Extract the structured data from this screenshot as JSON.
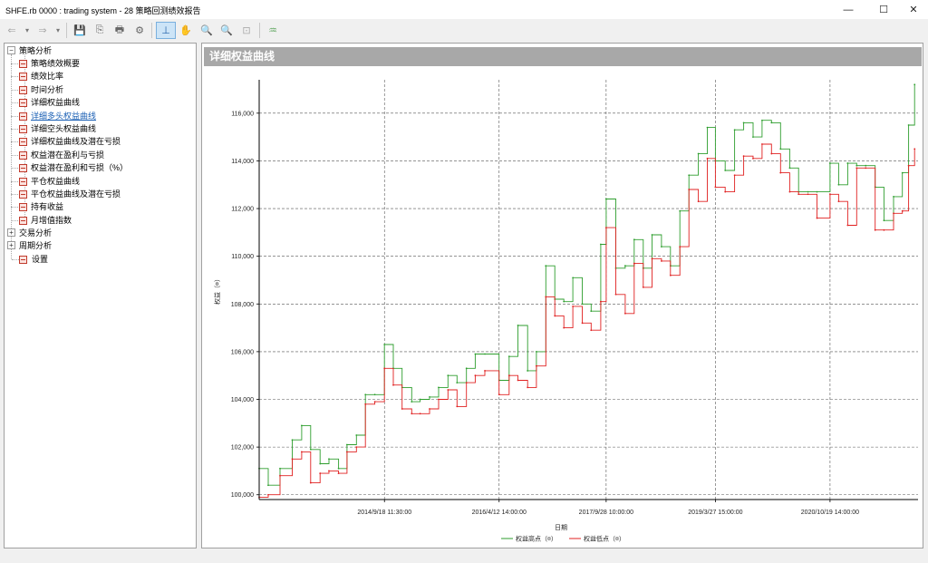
{
  "window": {
    "title": "SHFE.rb 0000 : trading system - 28 策略回测绩效报告",
    "minimize": "—",
    "maximize": "☐",
    "close": "✕"
  },
  "toolbar": {
    "back": "⇐",
    "back_dropdown": "▾",
    "forward": "⇒",
    "forward_dropdown": "▾",
    "save": "💾",
    "export": "⎘",
    "print": "🖶",
    "settings": "⚙",
    "cursor": "⊥",
    "hand": "✋",
    "zoom_in": "🔍",
    "zoom_out": "🔍",
    "zoom_fit": "⊡",
    "chart_style": "♒"
  },
  "tree": {
    "root1": {
      "label": "策略分析",
      "toggle": "−"
    },
    "items": [
      {
        "label": "策略绩效概要"
      },
      {
        "label": "绩效比率"
      },
      {
        "label": "时间分析"
      },
      {
        "label": "详细权益曲线"
      },
      {
        "label": "详细多头权益曲线",
        "selected": true
      },
      {
        "label": "详细空头权益曲线"
      },
      {
        "label": "详细权益曲线及潜在亏损"
      },
      {
        "label": "权益潜在盈利与亏损"
      },
      {
        "label": "权益潜在盈利和亏损（%）"
      },
      {
        "label": "平仓权益曲线"
      },
      {
        "label": "平仓权益曲线及潜在亏损"
      },
      {
        "label": "持有收益"
      },
      {
        "label": "月增值指数"
      }
    ],
    "root2": {
      "label": "交易分析",
      "toggle": "+"
    },
    "root3": {
      "label": "周期分析",
      "toggle": "+"
    },
    "root4": {
      "label": "设置"
    }
  },
  "panel": {
    "header": "详细权益曲线"
  },
  "colors": {
    "high": "#2e9e2e",
    "low": "#e02020",
    "grid": "#555555"
  },
  "chart_data": {
    "type": "line",
    "xlabel": "日期",
    "ylabel": "权益（¤）",
    "x_ticks": [
      "2014/9/18 11:30:00",
      "2016/4/12 14:00:00",
      "2017/9/28 10:00:00",
      "2019/3/27 15:00:00",
      "2020/10/19 14:00:00"
    ],
    "y_ticks": [
      "100,000",
      "102,000",
      "104,000",
      "106,000",
      "108,000",
      "110,000",
      "112,000",
      "114,000",
      "116,000"
    ],
    "ylim": [
      99800,
      117400
    ],
    "xlim": [
      "2013/1/1",
      "2022/1/1"
    ],
    "grid": true,
    "legend_position": "bottom",
    "series": [
      {
        "name": "权益高点（¤）",
        "color": "#2e9e2e",
        "x": [
          "2013/1/1",
          "2013/2/15",
          "2013/4/15",
          "2013/6/15",
          "2013/8/1",
          "2013/9/15",
          "2013/11/1",
          "2013/12/15",
          "2014/2/1",
          "2014/3/15",
          "2014/5/1",
          "2014/6/15",
          "2014/8/1",
          "2014/9/18",
          "2014/11/1",
          "2014/12/15",
          "2015/2/1",
          "2015/3/15",
          "2015/5/1",
          "2015/6/15",
          "2015/8/1",
          "2015/9/15",
          "2015/11/1",
          "2015/12/15",
          "2016/2/1",
          "2016/4/12",
          "2016/6/1",
          "2016/7/15",
          "2016/9/1",
          "2016/10/15",
          "2016/12/1",
          "2017/1/15",
          "2017/3/1",
          "2017/4/15",
          "2017/6/1",
          "2017/7/15",
          "2017/9/1",
          "2017/9/28",
          "2017/11/15",
          "2018/1/1",
          "2018/2/15",
          "2018/4/1",
          "2018/5/15",
          "2018/7/1",
          "2018/8/15",
          "2018/10/1",
          "2018/11/15",
          "2019/1/1",
          "2019/2/15",
          "2019/3/27",
          "2019/5/15",
          "2019/7/1",
          "2019/8/15",
          "2019/10/1",
          "2019/11/15",
          "2020/1/1",
          "2020/2/15",
          "2020/4/1",
          "2020/5/15",
          "2020/7/1",
          "2020/8/15",
          "2020/10/19",
          "2020/12/1",
          "2021/1/15",
          "2021/3/1",
          "2021/4/15",
          "2021/6/1",
          "2021/7/15",
          "2021/9/1",
          "2021/10/15",
          "2021/11/15",
          "2021/12/15"
        ],
        "values": [
          101100,
          100400,
          101100,
          102300,
          102900,
          101900,
          101300,
          101500,
          101100,
          102100,
          102500,
          104200,
          104200,
          106300,
          105300,
          104500,
          103900,
          104000,
          104100,
          104500,
          105000,
          104700,
          105300,
          105900,
          105900,
          104800,
          105800,
          107100,
          105200,
          106000,
          109600,
          108200,
          108100,
          109100,
          108000,
          107700,
          110500,
          112400,
          109500,
          109600,
          110700,
          109500,
          110900,
          110400,
          109600,
          111900,
          113400,
          114300,
          115400,
          114000,
          113600,
          115300,
          115600,
          115000,
          115700,
          115600,
          114500,
          113700,
          112700,
          112700,
          112700,
          113900,
          113000,
          113900,
          113800,
          113800,
          112900,
          111500,
          112500,
          113500,
          115500,
          117200
        ]
      },
      {
        "name": "权益低点（¤）",
        "color": "#e02020",
        "x": [
          "2013/1/1",
          "2013/2/15",
          "2013/4/15",
          "2013/6/15",
          "2013/8/1",
          "2013/9/15",
          "2013/11/1",
          "2013/12/15",
          "2014/2/1",
          "2014/3/15",
          "2014/5/1",
          "2014/6/15",
          "2014/8/1",
          "2014/9/18",
          "2014/11/1",
          "2014/12/15",
          "2015/2/1",
          "2015/3/15",
          "2015/5/1",
          "2015/6/15",
          "2015/8/1",
          "2015/9/15",
          "2015/11/1",
          "2015/12/15",
          "2016/2/1",
          "2016/4/12",
          "2016/6/1",
          "2016/7/15",
          "2016/9/1",
          "2016/10/15",
          "2016/12/1",
          "2017/1/15",
          "2017/3/1",
          "2017/4/15",
          "2017/6/1",
          "2017/7/15",
          "2017/9/1",
          "2017/9/28",
          "2017/11/15",
          "2018/1/1",
          "2018/2/15",
          "2018/4/1",
          "2018/5/15",
          "2018/7/1",
          "2018/8/15",
          "2018/10/1",
          "2018/11/15",
          "2019/1/1",
          "2019/2/15",
          "2019/3/27",
          "2019/5/15",
          "2019/7/1",
          "2019/8/15",
          "2019/10/1",
          "2019/11/15",
          "2020/1/1",
          "2020/2/15",
          "2020/4/1",
          "2020/5/15",
          "2020/7/1",
          "2020/8/15",
          "2020/10/19",
          "2020/12/1",
          "2021/1/15",
          "2021/3/1",
          "2021/4/15",
          "2021/6/1",
          "2021/7/15",
          "2021/9/1",
          "2021/10/15",
          "2021/11/15",
          "2021/12/15"
        ],
        "values": [
          99900,
          100000,
          100800,
          101500,
          101800,
          100500,
          100900,
          101000,
          100900,
          101800,
          102000,
          103800,
          103900,
          105300,
          104600,
          103600,
          103400,
          103400,
          103600,
          104000,
          104400,
          103700,
          104700,
          105000,
          105200,
          104200,
          105000,
          104800,
          104500,
          105400,
          108300,
          107500,
          107000,
          107900,
          107200,
          106900,
          108100,
          111200,
          108400,
          107600,
          109700,
          108700,
          109900,
          109800,
          109200,
          110400,
          112800,
          112300,
          114100,
          112900,
          112700,
          113400,
          114200,
          114100,
          114700,
          114300,
          113500,
          112700,
          112600,
          112600,
          111600,
          112600,
          112300,
          111300,
          113700,
          113700,
          111100,
          111100,
          111800,
          111900,
          113800,
          114500
        ]
      }
    ]
  }
}
